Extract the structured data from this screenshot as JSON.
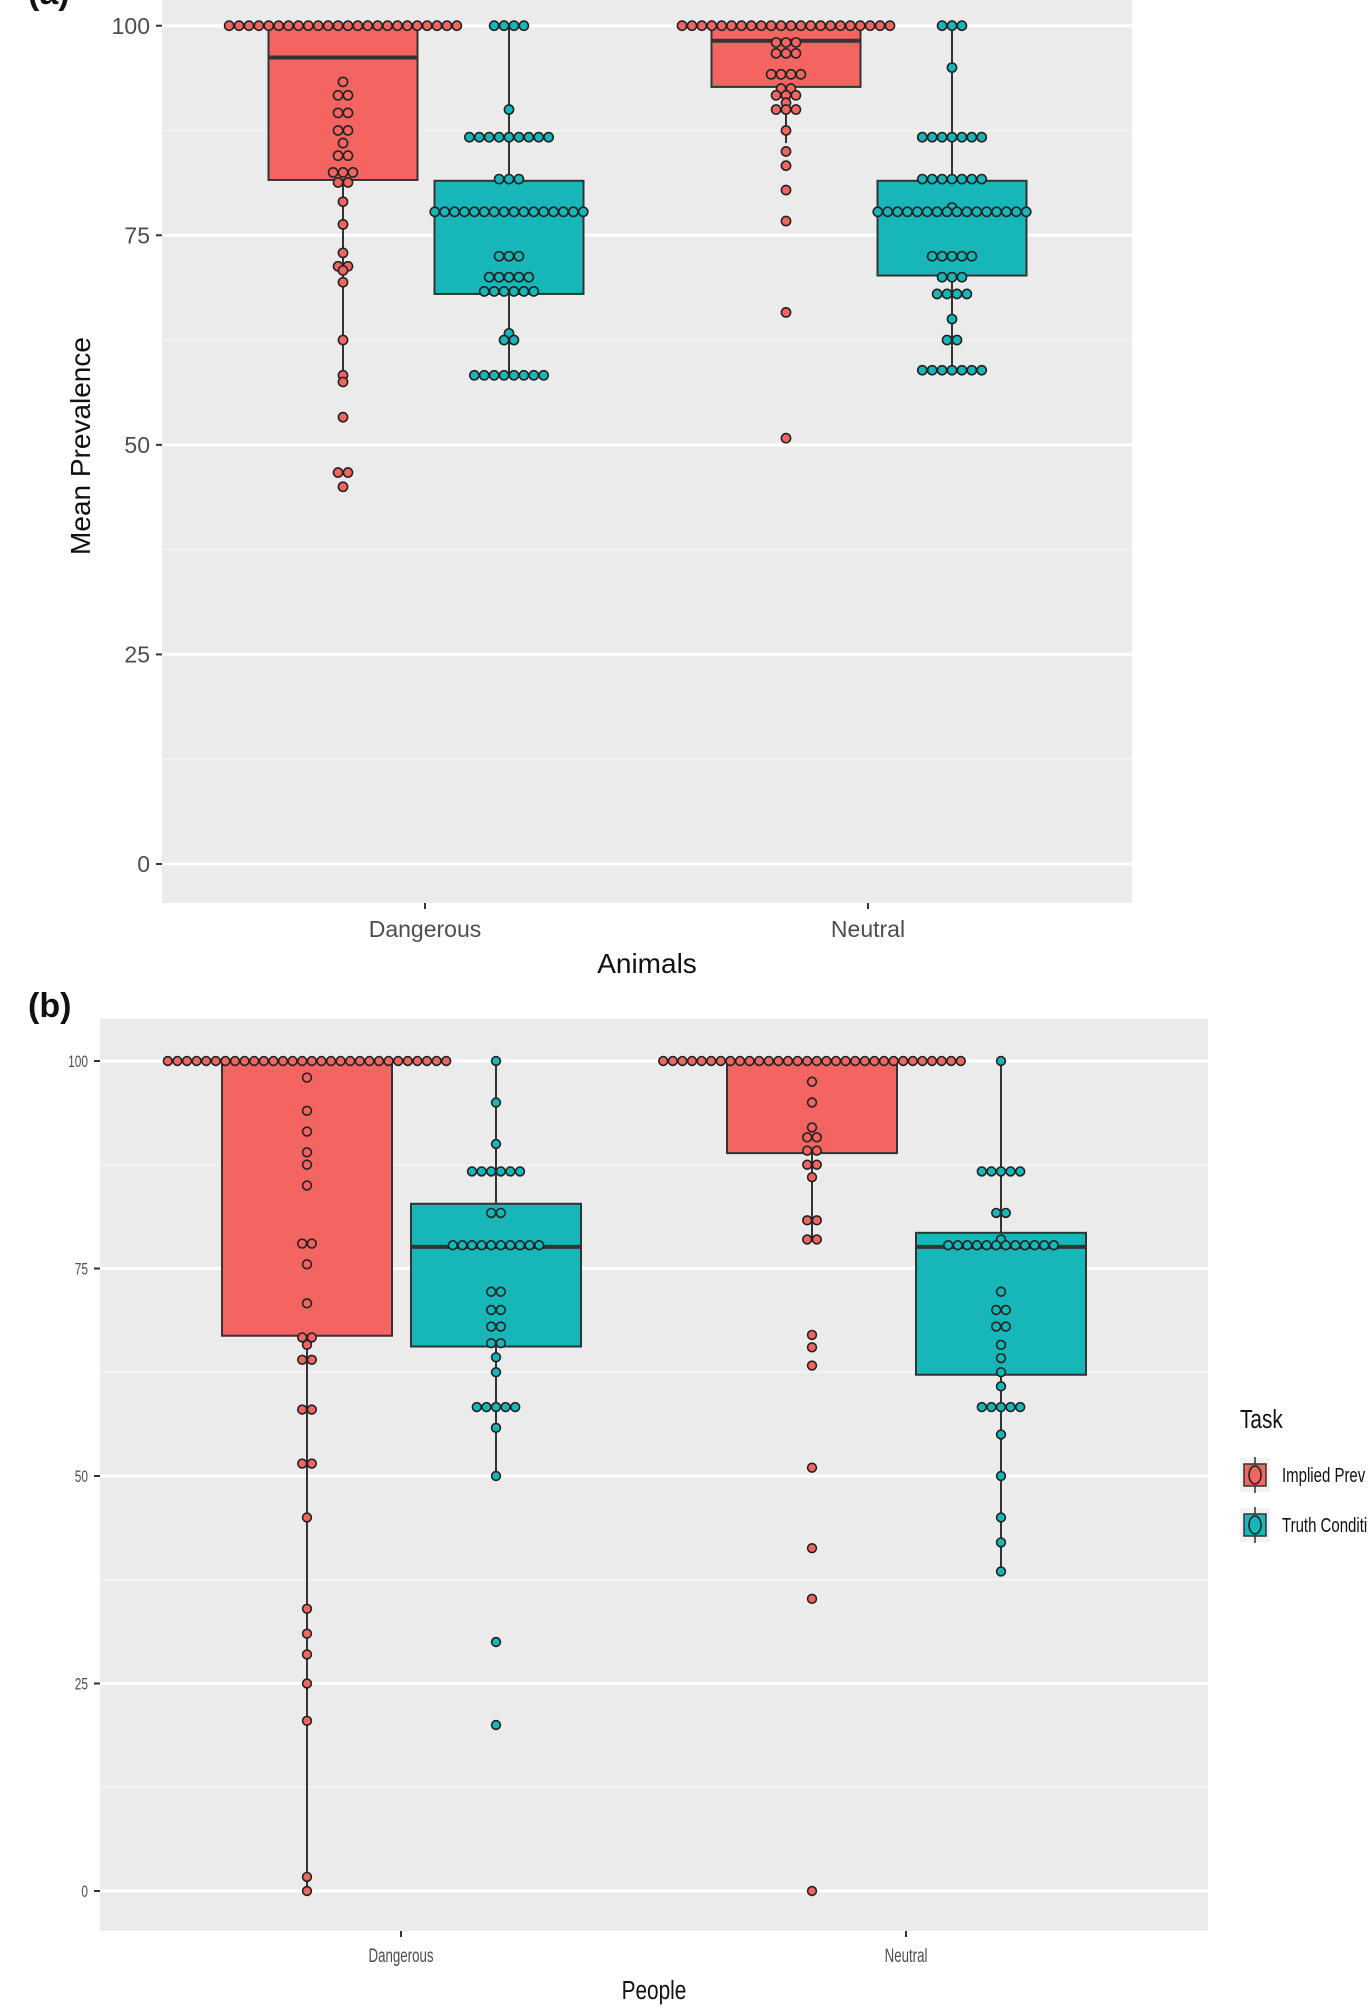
{
  "chart_data": [
    {
      "panel_label": "(a)",
      "type": "boxplot with dot plot",
      "xlabel": "Animals",
      "ylabel": "Mean Prevalence",
      "ylim": [
        0,
        100
      ],
      "yticks": [
        "0",
        "25",
        "50",
        "75",
        "100"
      ],
      "categories": [
        "Dangerous",
        "Neutral"
      ],
      "grid": true,
      "series": [
        {
          "name": "Implied Prev",
          "color": "#f46460",
          "boxes": [
            {
              "category": "Dangerous",
              "whisker_low": 58,
              "q1": 81.6,
              "median": 96.2,
              "q3": 100,
              "whisker_high": 100,
              "dots": [
                [
                  100,
                  24
                ],
                [
                  93.3,
                  1
                ],
                [
                  91.7,
                  2
                ],
                [
                  89.6,
                  2
                ],
                [
                  87.5,
                  2
                ],
                [
                  86,
                  1
                ],
                [
                  84.5,
                  2
                ],
                [
                  82.5,
                  3
                ],
                [
                  81.3,
                  2
                ],
                [
                  79,
                  1
                ],
                [
                  76.3,
                  1
                ],
                [
                  72.9,
                  1
                ],
                [
                  71.3,
                  2
                ],
                [
                  70.8,
                  1
                ],
                [
                  69.4,
                  1
                ],
                [
                  62.5,
                  1
                ],
                [
                  58.3,
                  1
                ],
                [
                  57.5,
                  1
                ],
                [
                  53.3,
                  1
                ],
                [
                  46.7,
                  2
                ],
                [
                  45,
                  1
                ]
              ]
            },
            {
              "category": "Neutral",
              "whisker_low": 86,
              "q1": 92.7,
              "median": 98.2,
              "q3": 100,
              "whisker_high": 100,
              "dots": [
                [
                  100,
                  22
                ],
                [
                  98,
                  3
                ],
                [
                  96.7,
                  3
                ],
                [
                  94.2,
                  4
                ],
                [
                  92.5,
                  2
                ],
                [
                  91.7,
                  3
                ],
                [
                  90.8,
                  1
                ],
                [
                  90,
                  3
                ],
                [
                  87.5,
                  1
                ],
                [
                  85,
                  1
                ],
                [
                  83.3,
                  1
                ],
                [
                  80.4,
                  1
                ],
                [
                  76.7,
                  1
                ],
                [
                  65.8,
                  1
                ],
                [
                  50.8,
                  1
                ]
              ]
            }
          ]
        },
        {
          "name": "Truth Conditi",
          "color": "#17b6b9",
          "boxes": [
            {
              "category": "Dangerous",
              "whisker_low": 58.4,
              "q1": 68,
              "median": 77.7,
              "q3": 81.5,
              "whisker_high": 100,
              "dots": [
                [
                  100,
                  4
                ],
                [
                  90,
                  1
                ],
                [
                  86.7,
                  9
                ],
                [
                  81.7,
                  3
                ],
                [
                  77.8,
                  16
                ],
                [
                  72.5,
                  3
                ],
                [
                  70,
                  5
                ],
                [
                  68.3,
                  6
                ],
                [
                  63.3,
                  1
                ],
                [
                  62.5,
                  2
                ],
                [
                  58.3,
                  8
                ]
              ]
            },
            {
              "category": "Neutral",
              "whisker_low": 58.9,
              "q1": 70.2,
              "median": 77.7,
              "q3": 81.5,
              "whisker_high": 100,
              "dots": [
                [
                  100,
                  3
                ],
                [
                  95,
                  1
                ],
                [
                  86.7,
                  7
                ],
                [
                  81.7,
                  7
                ],
                [
                  78.3,
                  1
                ],
                [
                  77.8,
                  16
                ],
                [
                  72.5,
                  5
                ],
                [
                  70,
                  3
                ],
                [
                  68,
                  4
                ],
                [
                  65,
                  1
                ],
                [
                  62.5,
                  2
                ],
                [
                  58.9,
                  7
                ]
              ]
            }
          ]
        }
      ]
    },
    {
      "panel_label": "(b)",
      "type": "boxplot with dot plot",
      "xlabel": "People",
      "ylabel": "",
      "ylim": [
        0,
        100
      ],
      "yticks": [
        "0",
        "25",
        "50",
        "75",
        "100"
      ],
      "categories": [
        "Dangerous",
        "Neutral"
      ],
      "grid": true,
      "series": [
        {
          "name": "Implied Prev",
          "color": "#f46460",
          "boxes": [
            {
              "category": "Dangerous",
              "whisker_low": 0,
              "q1": 66.9,
              "median": 100,
              "q3": 100,
              "whisker_high": 100,
              "dots": [
                [
                  100,
                  30
                ],
                [
                  98,
                  1
                ],
                [
                  94,
                  1
                ],
                [
                  91.5,
                  1
                ],
                [
                  89,
                  1
                ],
                [
                  87.5,
                  1
                ],
                [
                  85,
                  1
                ],
                [
                  78,
                  2
                ],
                [
                  75.5,
                  1
                ],
                [
                  70.8,
                  1
                ],
                [
                  66.7,
                  2
                ],
                [
                  65.8,
                  1
                ],
                [
                  64,
                  2
                ],
                [
                  58,
                  2
                ],
                [
                  51.5,
                  2
                ],
                [
                  45,
                  1
                ],
                [
                  34,
                  1
                ],
                [
                  31,
                  1
                ],
                [
                  28.5,
                  1
                ],
                [
                  25,
                  1
                ],
                [
                  20.5,
                  1
                ],
                [
                  1.7,
                  1
                ],
                [
                  0,
                  1
                ]
              ]
            },
            {
              "category": "Neutral",
              "whisker_low": 78.6,
              "q1": 88.9,
              "median": 100,
              "q3": 100,
              "whisker_high": 100,
              "dots": [
                [
                  100,
                  32
                ],
                [
                  97.5,
                  1
                ],
                [
                  95,
                  1
                ],
                [
                  92,
                  1
                ],
                [
                  90.8,
                  2
                ],
                [
                  89.2,
                  2
                ],
                [
                  87.5,
                  2
                ],
                [
                  86,
                  1
                ],
                [
                  80.8,
                  2
                ],
                [
                  78.5,
                  2
                ],
                [
                  67,
                  1
                ],
                [
                  65.5,
                  1
                ],
                [
                  63.3,
                  1
                ],
                [
                  51,
                  1
                ],
                [
                  41.3,
                  1
                ],
                [
                  35.2,
                  1
                ],
                [
                  0,
                  1
                ]
              ]
            }
          ]
        },
        {
          "name": "Truth Conditi",
          "color": "#17b6b9",
          "boxes": [
            {
              "category": "Dangerous",
              "whisker_low": 50.2,
              "q1": 65.6,
              "median": 77.6,
              "q3": 82.8,
              "whisker_high": 100,
              "dots": [
                [
                  100,
                  1
                ],
                [
                  95,
                  1
                ],
                [
                  90,
                  1
                ],
                [
                  86.7,
                  6
                ],
                [
                  81.7,
                  2
                ],
                [
                  77.8,
                  10
                ],
                [
                  72.2,
                  2
                ],
                [
                  70,
                  2
                ],
                [
                  68,
                  2
                ],
                [
                  66,
                  2
                ],
                [
                  64.3,
                  1
                ],
                [
                  62.5,
                  1
                ],
                [
                  58.3,
                  5
                ],
                [
                  55.8,
                  1
                ],
                [
                  50,
                  1
                ],
                [
                  30,
                  1
                ],
                [
                  20,
                  1
                ]
              ]
            },
            {
              "category": "Neutral",
              "whisker_low": 38.5,
              "q1": 62.2,
              "median": 77.6,
              "q3": 79.3,
              "whisker_high": 100,
              "dots": [
                [
                  100,
                  1
                ],
                [
                  86.7,
                  5
                ],
                [
                  81.7,
                  2
                ],
                [
                  78.5,
                  1
                ],
                [
                  77.8,
                  12
                ],
                [
                  72.2,
                  1
                ],
                [
                  70,
                  2
                ],
                [
                  68,
                  2
                ],
                [
                  65.8,
                  1
                ],
                [
                  64.2,
                  1
                ],
                [
                  62.5,
                  1
                ],
                [
                  60.8,
                  1
                ],
                [
                  58.3,
                  5
                ],
                [
                  55,
                  1
                ],
                [
                  50,
                  1
                ],
                [
                  45,
                  1
                ],
                [
                  42,
                  1
                ],
                [
                  38.5,
                  1
                ]
              ]
            }
          ]
        }
      ]
    }
  ],
  "legend": {
    "title": "Task",
    "placement": "right",
    "items": [
      {
        "label": "Implied Prev",
        "color": "#f46460"
      },
      {
        "label": "Truth Conditi",
        "color": "#17b6b9"
      }
    ]
  },
  "colors": {
    "panel_background": "#ebebeb",
    "gridline": "#ffffff"
  }
}
